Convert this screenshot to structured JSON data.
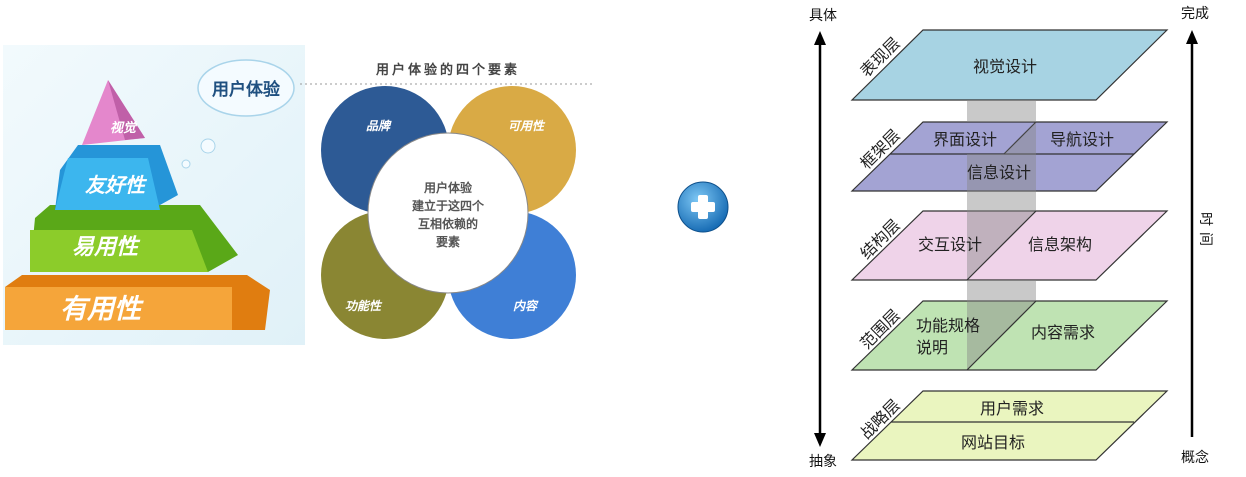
{
  "left": {
    "pyramid": [
      "视觉",
      "友好性",
      "易用性",
      "有用性"
    ],
    "cloud_label": "用户体验",
    "four_elements_title": "用户体验的四个要素",
    "petals": [
      "品牌",
      "可用性",
      "功能性",
      "内容"
    ],
    "center_lines": [
      "用户体验",
      "建立于这四个",
      "互相依赖的",
      "要素"
    ],
    "petal_colors": [
      "#2d5a95",
      "#d9aa45",
      "#8a8633",
      "#3f7fd6"
    ]
  },
  "plus_icon": "plus-icon",
  "right": {
    "axis_left_top": "具体",
    "axis_left_bottom": "抽象",
    "axis_right_top": "完成",
    "axis_right_bottom": "概念",
    "axis_right_label": "时间",
    "layers": [
      {
        "name": "表现层",
        "color": "#a7d3e3",
        "cells": [
          "视觉设计"
        ]
      },
      {
        "name": "框架层",
        "color": "#a3a3d3",
        "cells": [
          "界面设计",
          "导航设计",
          "信息设计"
        ]
      },
      {
        "name": "结构层",
        "color": "#efd3e9",
        "cells": [
          "交互设计",
          "信息架构"
        ]
      },
      {
        "name": "范围层",
        "color": "#bfe3b3",
        "cells": [
          "功能规格",
          "说明",
          "内容需求"
        ]
      },
      {
        "name": "战略层",
        "color": "#eaf5bf",
        "cells": [
          "用户需求",
          "网站目标"
        ]
      }
    ]
  }
}
